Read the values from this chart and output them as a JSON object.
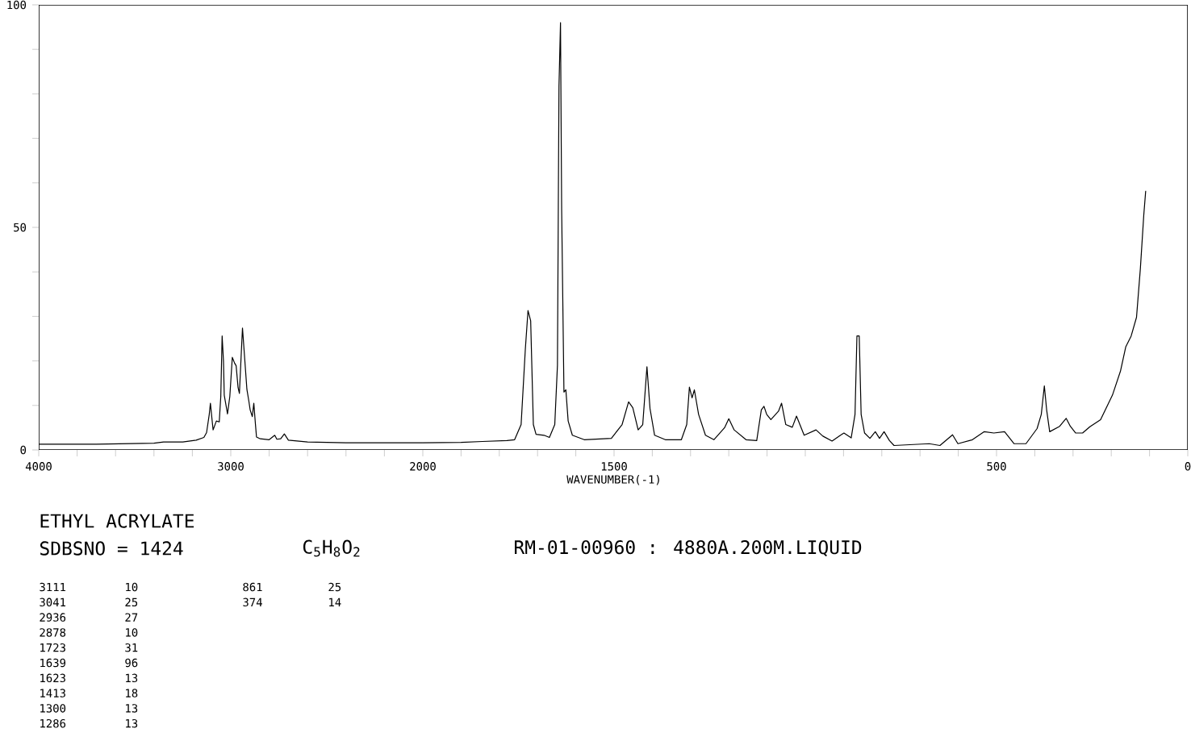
{
  "chart_data": [
    {
      "type": "line",
      "title": "ETHYL ACRYLATE",
      "subtitle": "SDBSNO = 1424",
      "annotations": [
        "C$_{5}$H$_{8}$O$_{2}$",
        "RM-01-00960 : 4880A.200M.LIQUID",
        "3111",
        "10",
        "3041",
        "25",
        "2936",
        "27",
        "2878",
        "10",
        "1723",
        "31",
        "1639",
        "96",
        "1623",
        "13",
        "1413",
        "18",
        "1300",
        "13",
        "1286",
        "13",
        "861",
        "25",
        "374",
        "14"
      ],
      "xlim": [
        4000,
        2000
      ],
      "ylim": [
        0,
        100
      ],
      "xticks": [
        4000,
        {
          "value": 3800,
          "label": null
        },
        {
          "value": 3600,
          "label": null
        },
        {
          "value": 3400,
          "label": null
        },
        {
          "value": 3200,
          "label": null
        },
        3000,
        {
          "value": 2800,
          "label": null
        },
        {
          "value": 2600,
          "label": null
        },
        {
          "value": 2400,
          "label": null
        },
        {
          "value": 2200,
          "label": null
        },
        2000
      ],
      "yticks": [
        0,
        {
          "value": 10,
          "label": null
        },
        {
          "value": 20,
          "label": null
        },
        {
          "value": 30,
          "label": null
        },
        {
          "value": 40,
          "label": null
        },
        50,
        {
          "value": 60,
          "label": null
        },
        {
          "value": 70,
          "label": null
        },
        {
          "value": 80,
          "label": null
        },
        {
          "value": 90,
          "label": null
        },
        100
      ],
      "grid": false,
      "marker": "none",
      "line_style": "solid",
      "series": [
        {
          "color": "#000000",
          "x": [
            4000,
            3700,
            3400,
            3350,
            3250,
            3180,
            3140,
            3126,
            3112,
            3106,
            3098,
            3092,
            3075,
            3060,
            3052,
            3045,
            3038,
            3034,
            3017,
            3005,
            2992,
            2980,
            2972,
            2962,
            2955,
            2945,
            2939,
            2930,
            2916,
            2906,
            2899,
            2888,
            2880,
            2872,
            2866,
            2846,
            2800,
            2771,
            2760,
            2740,
            2721,
            2700,
            2600,
            2400,
            2200,
            2000
          ],
          "values": [
            1.3,
            1.3,
            1.5,
            1.8,
            1.8,
            2.2,
            2.8,
            3.9,
            8,
            10.5,
            7,
            4.5,
            6.5,
            6.3,
            12,
            25.6,
            20,
            12.3,
            8.1,
            12,
            20.8,
            19.5,
            18.9,
            14,
            12.7,
            22,
            27.4,
            22,
            13.6,
            11,
            9,
            7.5,
            10.5,
            6,
            2.9,
            2.5,
            2.3,
            3.3,
            2.4,
            2.5,
            3.6,
            2.2,
            1.8,
            1.6,
            1.6,
            1.6
          ]
        }
      ]
    },
    {
      "type": "line",
      "xlabel": "WAVENUMBER(-1)",
      "xlim": [
        2000,
        0
      ],
      "ylim": [
        0,
        100
      ],
      "tick_labels": "x",
      "xticks": [
        {
          "value": 1900,
          "label": null
        },
        {
          "value": 1800,
          "label": null
        },
        {
          "value": 1700,
          "label": null
        },
        {
          "value": 1600,
          "label": null
        },
        1500,
        {
          "value": 1400,
          "label": null
        },
        {
          "value": 1300,
          "label": null
        },
        {
          "value": 1200,
          "label": null
        },
        {
          "value": 1100,
          "label": null
        },
        {
          "value": 1000,
          "label": null
        },
        {
          "value": 900,
          "label": null
        },
        {
          "value": 800,
          "label": null
        },
        {
          "value": 700,
          "label": null
        },
        {
          "value": 600,
          "label": null
        },
        500,
        {
          "value": 400,
          "label": null
        },
        {
          "value": 300,
          "label": null
        },
        {
          "value": 200,
          "label": null
        },
        {
          "value": 100,
          "label": null
        },
        0
      ],
      "grid": false,
      "marker": "none",
      "line_style": "solid",
      "series": [
        {
          "color": "#000000",
          "x": [
            2000,
            1900,
            1844,
            1780,
            1760,
            1743,
            1732,
            1725,
            1718,
            1711,
            1704,
            1683,
            1669,
            1655,
            1648,
            1644,
            1640,
            1637,
            1631,
            1626,
            1620,
            1609,
            1578,
            1507,
            1479,
            1462,
            1451,
            1437,
            1425,
            1414,
            1406,
            1394,
            1366,
            1324,
            1310,
            1303,
            1296,
            1290,
            1279,
            1261,
            1239,
            1211,
            1200,
            1186,
            1155,
            1127,
            1115,
            1108,
            1101,
            1090,
            1070,
            1062,
            1051,
            1034,
            1023,
            1003,
            972,
            954,
            930,
            908,
            899,
            880,
            870,
            865,
            859,
            854,
            845,
            831,
            817,
            806,
            794,
            780,
            768,
            676,
            648,
            615,
            601,
            563,
            532,
            507,
            479,
            454,
            423,
            394,
            383,
            375,
            369,
            361,
            335,
            318,
            307,
            293,
            275,
            256,
            228,
            197,
            176,
            162,
            148,
            134,
            124,
            115,
            110
          ],
          "values": [
            1.6,
            1.7,
            1.9,
            2.1,
            2.3,
            5.7,
            22.6,
            31.3,
            29,
            5.7,
            3.5,
            3.3,
            2.8,
            5.7,
            19,
            81.8,
            96,
            54,
            13,
            13.5,
            6.5,
            3.3,
            2.3,
            2.6,
            5.7,
            10.8,
            9.5,
            4.5,
            5.7,
            18.7,
            9.3,
            3.3,
            2.3,
            2.3,
            5.7,
            14.1,
            11.7,
            13.5,
            8,
            3.3,
            2.3,
            5,
            7,
            4.5,
            2.3,
            2.1,
            9,
            9.8,
            8,
            6.8,
            8.7,
            10.5,
            5.7,
            5.1,
            7.6,
            3.3,
            4.5,
            3.1,
            2.0,
            3.3,
            3.8,
            2.7,
            8,
            25.6,
            25.6,
            8,
            3.8,
            2.6,
            4.1,
            2.6,
            4.1,
            2.1,
            1.0,
            1.4,
            1.0,
            3.4,
            1.4,
            2.3,
            4.1,
            3.8,
            4.1,
            1.4,
            1.4,
            4.8,
            8.0,
            14.4,
            9,
            4.1,
            5.3,
            7.1,
            5.3,
            3.8,
            3.8,
            5.2,
            6.8,
            12.3,
            17.7,
            23.2,
            25.6,
            29.8,
            40.7,
            52.8,
            58.2
          ]
        }
      ]
    }
  ]
}
